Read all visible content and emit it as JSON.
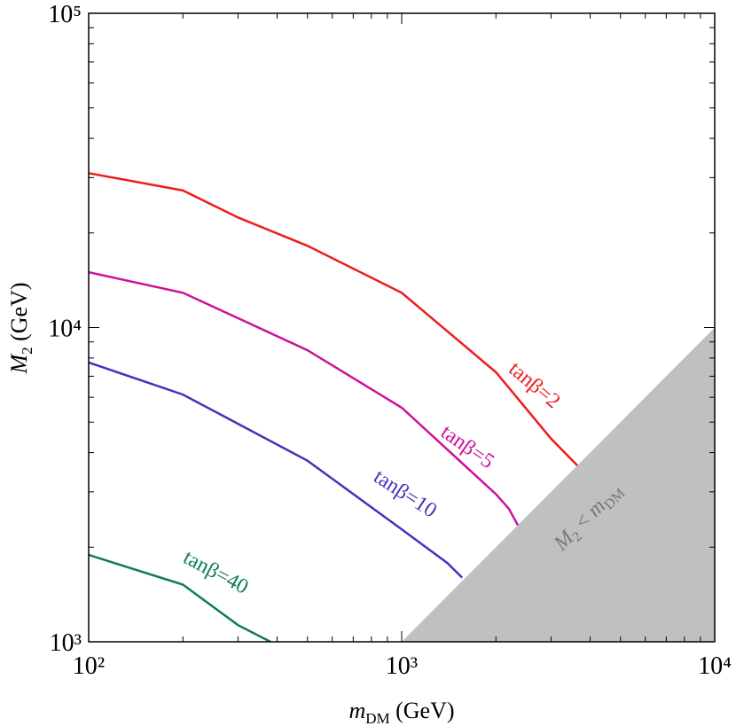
{
  "chart_data": {
    "type": "line",
    "log_x": true,
    "log_y": true,
    "xlabel": [
      "m",
      "DM",
      " (GeV)"
    ],
    "ylabel": [
      "M",
      "2",
      " (GeV)"
    ],
    "xlim": [
      100,
      10000
    ],
    "ylim": [
      1000,
      100000
    ],
    "xticks": [
      {
        "value": 100,
        "label": "10²"
      },
      {
        "value": 1000,
        "label": "10³"
      },
      {
        "value": 10000,
        "label": "10⁴"
      }
    ],
    "yticks": [
      {
        "value": 1000,
        "label": "10³"
      },
      {
        "value": 10000,
        "label": "10⁴"
      },
      {
        "value": 100000,
        "label": "10⁵"
      }
    ],
    "region": {
      "label": [
        "M",
        "2",
        " < ",
        "m",
        "DM"
      ],
      "color": "#c0c0c0",
      "x": [
        1000,
        10000,
        10000
      ],
      "y": [
        1000,
        10000,
        1000
      ]
    },
    "series": [
      {
        "name": "tanβ=2",
        "color": "#ee1c1c",
        "x": [
          100,
          200,
          300,
          500,
          1000,
          2000,
          3000,
          3640
        ],
        "values": [
          31000,
          27300,
          22400,
          18200,
          12900,
          7210,
          4430,
          3640
        ]
      },
      {
        "name": "tanβ=5",
        "color": "#cc1199",
        "x": [
          100,
          200,
          500,
          1000,
          2000,
          2200,
          2350
        ],
        "values": [
          15000,
          12900,
          8470,
          5560,
          2950,
          2650,
          2350
        ]
      },
      {
        "name": "tanβ=10",
        "color": "#4433bb",
        "x": [
          100,
          200,
          500,
          1000,
          1400,
          1560
        ],
        "values": [
          7740,
          6120,
          3770,
          2280,
          1780,
          1600
        ]
      },
      {
        "name": "tanβ=40",
        "color": "#0e7c5e",
        "x": [
          100,
          200,
          300,
          381
        ],
        "values": [
          1890,
          1520,
          1130,
          1000
        ]
      }
    ]
  }
}
